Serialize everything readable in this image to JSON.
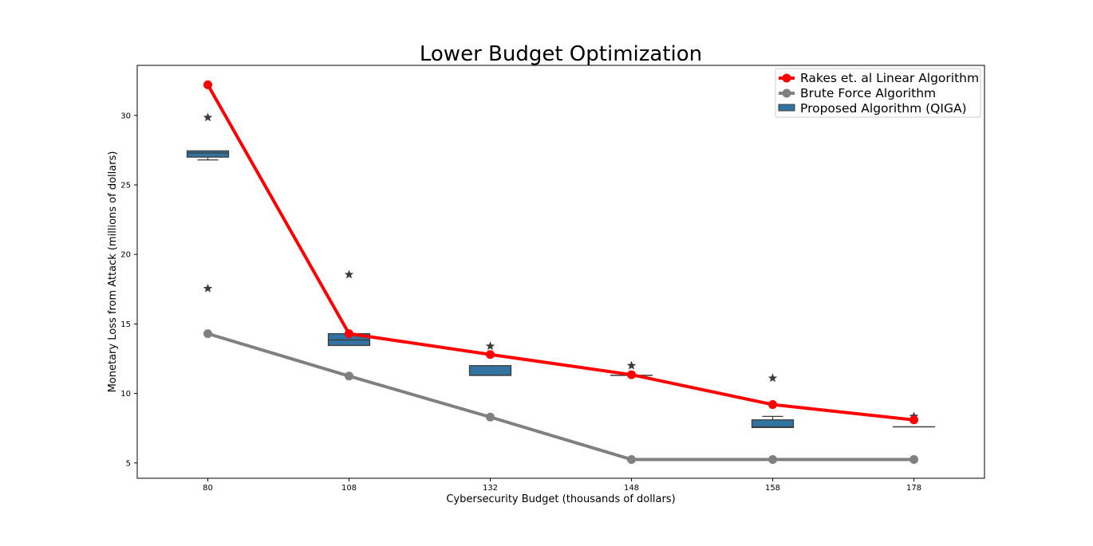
{
  "chart_data": {
    "type": "line",
    "title": "Lower Budget Optimization",
    "xlabel": "Cybersecurity Budget (thousands of dollars)",
    "ylabel": "Monetary Loss from Attack (millions of dollars)",
    "categories": [
      "80",
      "108",
      "132",
      "148",
      "158",
      "178"
    ],
    "y_ticks": [
      5,
      10,
      15,
      20,
      25,
      30
    ],
    "ylim": [
      3.9,
      33.6
    ],
    "grid": false,
    "legend_position": "top-right",
    "series": [
      {
        "name": "Rakes et. al Linear Algorithm",
        "kind": "line",
        "color": "#ff0000",
        "values": [
          32.2,
          14.3,
          12.8,
          11.35,
          9.2,
          8.1
        ]
      },
      {
        "name": "Brute Force Algorithm",
        "kind": "line",
        "color": "#808080",
        "values": [
          14.3,
          11.25,
          8.3,
          5.25,
          5.25,
          5.25
        ]
      },
      {
        "name": "Proposed Algorithm (QIGA)",
        "kind": "box",
        "color": "#3274a1",
        "boxes": [
          {
            "q1": 27.0,
            "median": 27.3,
            "q3": 27.45,
            "whisker_low": 26.8,
            "whisker_high": 27.45,
            "outliers": [
              29.85,
              17.55
            ]
          },
          {
            "q1": 13.45,
            "median": 13.85,
            "q3": 14.3,
            "whisker_low": 13.45,
            "whisker_high": 14.3,
            "outliers": [
              18.55
            ]
          },
          {
            "q1": 11.3,
            "median": 11.3,
            "q3": 12.0,
            "whisker_low": 11.3,
            "whisker_high": 12.0,
            "outliers": [
              13.4
            ]
          },
          {
            "q1": 11.3,
            "median": 11.3,
            "q3": 11.3,
            "whisker_low": 11.3,
            "whisker_high": 11.3,
            "outliers": [
              12.0
            ]
          },
          {
            "q1": 7.55,
            "median": 7.6,
            "q3": 8.1,
            "whisker_low": 7.55,
            "whisker_high": 8.35,
            "outliers": [
              11.1
            ]
          },
          {
            "q1": 7.6,
            "median": 7.6,
            "q3": 7.6,
            "whisker_low": 7.6,
            "whisker_high": 7.6,
            "outliers": [
              8.35
            ]
          }
        ]
      }
    ]
  }
}
